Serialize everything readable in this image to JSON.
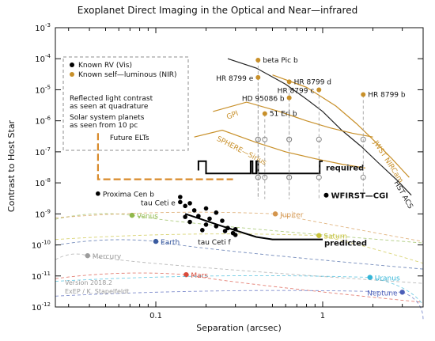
{
  "chart_data": {
    "type": "scatter",
    "title": "Exoplanet Direct Imaging in the Optical and Near—infrared",
    "xlabel": "Separation (arcsec)",
    "ylabel": "Contrast to Host Star",
    "x_scale": "log",
    "y_scale": "log",
    "xlim": [
      0.025,
      4
    ],
    "ylim": [
      1e-12,
      0.001
    ],
    "x_ticks": [
      {
        "value": 0.1,
        "label": "0.1"
      },
      {
        "value": 1,
        "label": "1"
      }
    ],
    "y_ticks": [
      {
        "value": 0.001,
        "base": "10",
        "exp": "-3"
      },
      {
        "value": 0.0001,
        "base": "10",
        "exp": "-4"
      },
      {
        "value": 1e-05,
        "base": "10",
        "exp": "-5"
      },
      {
        "value": 1e-06,
        "base": "10",
        "exp": "-6"
      },
      {
        "value": 1e-07,
        "base": "10",
        "exp": "-7"
      },
      {
        "value": 1e-08,
        "base": "10",
        "exp": "-8"
      },
      {
        "value": 1e-09,
        "base": "10",
        "exp": "-9"
      },
      {
        "value": 1e-10,
        "base": "10",
        "exp": "-10"
      },
      {
        "value": 1e-11,
        "base": "10",
        "exp": "-11"
      },
      {
        "value": 1e-12,
        "base": "10",
        "exp": "-12"
      }
    ],
    "grid": false,
    "legend": {
      "placement": "top-left",
      "entries": [
        {
          "label": "Known RV (Vis)",
          "color": "#000000"
        },
        {
          "label": "Known self—luminous (NIR)",
          "color": "#c8902a"
        }
      ],
      "notes": [
        [
          "Reflected light contrast",
          "as seen at quadrature"
        ],
        [
          "Solar system planets",
          "as seen from 10 pc"
        ]
      ]
    },
    "known_rv": [
      [
        0.045,
        4.5e-09
      ],
      [
        0.14,
        3.5e-09
      ],
      [
        0.16,
        2.2e-09
      ],
      [
        0.15,
        1.8e-09
      ],
      [
        0.17,
        1.3e-09
      ],
      [
        0.2,
        1.5e-09
      ],
      [
        0.23,
        1.1e-09
      ],
      [
        0.15,
        8e-10
      ],
      [
        0.18,
        8.5e-10
      ],
      [
        0.21,
        7e-10
      ],
      [
        0.25,
        6e-10
      ],
      [
        0.16,
        5.5e-10
      ],
      [
        0.2,
        4.5e-10
      ],
      [
        0.23,
        4e-10
      ],
      [
        0.27,
        3.5e-10
      ],
      [
        0.3,
        3.2e-10
      ],
      [
        0.26,
        2.8e-10
      ],
      [
        0.29,
        2.4e-10
      ],
      [
        0.19,
        3e-10
      ],
      [
        0.3,
        2.1e-10
      ],
      [
        0.14,
        2.4e-09
      ]
    ],
    "self_luminous": [
      {
        "name": "beta Pic  b",
        "x": 0.41,
        "y": 9e-05
      },
      {
        "name": "HR 8799 e",
        "x": 0.41,
        "y": 2.5e-05
      },
      {
        "name": "HR 8799 d",
        "x": 0.63,
        "y": 1.8e-05
      },
      {
        "name": "HR 8799 c",
        "x": 0.95,
        "y": 1e-05
      },
      {
        "name": "HR 8799 b",
        "x": 1.75,
        "y": 7e-06
      },
      {
        "name": "HD 95086 b",
        "x": 0.63,
        "y": 5.5e-06
      },
      {
        "name": "51 Eri  b",
        "x": 0.45,
        "y": 1.7e-06
      }
    ],
    "named_points": [
      {
        "name": "Proxima Cen b",
        "x": 0.045,
        "y": 4.5e-09
      },
      {
        "name": "tau Ceti e",
        "x": 0.14,
        "y": 2.4e-09
      },
      {
        "name": "tau Ceti f",
        "x": 0.3,
        "y": 2.1e-10
      },
      {
        "name": "WFIRST—CGI",
        "x": 1.05,
        "y": 4e-09
      }
    ],
    "solar_system": [
      {
        "name": "Venus",
        "x": 0.072,
        "y": 9e-10,
        "color": "#8fb84b"
      },
      {
        "name": "Earth",
        "x": 0.1,
        "y": 1.3e-10,
        "color": "#3a5ba0"
      },
      {
        "name": "Mercury",
        "x": 0.039,
        "y": 4.5e-11,
        "color": "#9c9c9c"
      },
      {
        "name": "Mars",
        "x": 0.152,
        "y": 1.1e-11,
        "color": "#d94a3a"
      },
      {
        "name": "Jupiter",
        "x": 0.52,
        "y": 1e-09,
        "color": "#d4954c"
      },
      {
        "name": "Saturn",
        "x": 0.95,
        "y": 2e-10,
        "color": "#c9c23a"
      },
      {
        "name": "Uranus",
        "x": 1.92,
        "y": 9e-12,
        "color": "#35b6d8"
      },
      {
        "name": "Neptune",
        "x": 3.0,
        "y": 3e-12,
        "color": "#4a5eb8"
      }
    ],
    "curves": [
      {
        "name": "HST ACS",
        "color": "#222222",
        "points": [
          [
            0.27,
            0.0001
          ],
          [
            0.4,
            5e-05
          ],
          [
            0.6,
            1.5e-05
          ],
          [
            0.8,
            5e-06
          ],
          [
            1,
            2e-06
          ],
          [
            1.3,
            5e-07
          ],
          [
            1.7,
            1.5e-07
          ],
          [
            2.2,
            4e-08
          ],
          [
            2.8,
            1.2e-08
          ],
          [
            3.4,
            4e-09
          ]
        ]
      },
      {
        "name": "JWST NIRCam",
        "color": "#c8902a",
        "points": [
          [
            0.5,
            3e-05
          ],
          [
            0.8,
            1.2e-05
          ],
          [
            1.2,
            3e-06
          ],
          [
            1.6,
            8e-07
          ],
          [
            2,
            2.5e-07
          ],
          [
            2.6,
            6e-08
          ],
          [
            3.3,
            1.5e-08
          ]
        ]
      },
      {
        "name": "GPI",
        "color": "#c8902a",
        "points": [
          [
            0.22,
            2e-06
          ],
          [
            0.35,
            4e-06
          ],
          [
            0.55,
            2e-06
          ],
          [
            0.8,
            1e-06
          ],
          [
            1.1,
            6e-07
          ],
          [
            1.5,
            4e-07
          ],
          [
            2,
            3e-07
          ]
        ]
      },
      {
        "name": "SPHERE—Sirius",
        "color": "#c8902a",
        "points": [
          [
            0.17,
            3e-07
          ],
          [
            0.25,
            5e-07
          ],
          [
            0.4,
            2e-07
          ],
          [
            0.6,
            1e-07
          ],
          [
            0.9,
            6e-08
          ],
          [
            1.3,
            4e-08
          ],
          [
            1.8,
            3e-08
          ]
        ]
      }
    ],
    "requirement_line": {
      "label": "required",
      "points": [
        [
          0.18,
          2.5e-08
        ],
        [
          0.18,
          5e-08
        ],
        [
          0.2,
          5e-08
        ],
        [
          0.2,
          2e-08
        ],
        [
          0.37,
          2e-08
        ],
        [
          0.37,
          5e-08
        ],
        [
          0.38,
          5e-08
        ],
        [
          0.38,
          2e-08
        ],
        [
          0.4,
          2e-08
        ],
        [
          0.4,
          5e-08
        ],
        [
          0.41,
          5e-08
        ],
        [
          0.41,
          2e-08
        ],
        [
          0.96,
          2e-08
        ],
        [
          0.96,
          5e-08
        ],
        [
          1.0,
          5e-08
        ]
      ]
    },
    "predicted_line": {
      "label": "predicted",
      "points": [
        [
          0.15,
          1e-09
        ],
        [
          0.25,
          4e-10
        ],
        [
          0.4,
          1.8e-10
        ],
        [
          0.5,
          1.5e-10
        ],
        [
          1.0,
          1.5e-10
        ]
      ]
    },
    "future_elts": {
      "label": "Future ELTs",
      "color": "#d88a2a",
      "points": [
        [
          0.045,
          4e-07
        ],
        [
          0.045,
          1.3e-08
        ],
        [
          0.29,
          1.3e-08
        ]
      ]
    },
    "version_text": [
      "Version 2018.2",
      "ExEP / K. Stapelfeldt"
    ]
  }
}
